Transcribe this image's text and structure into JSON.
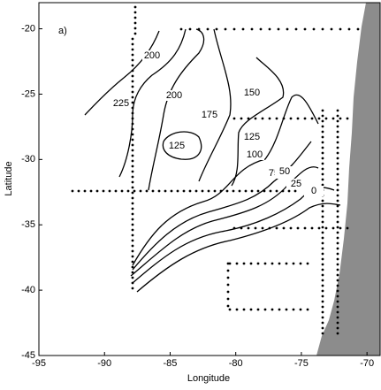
{
  "chart_data": {
    "type": "contour",
    "panel_label": "a)",
    "xlabel": "Longitude",
    "ylabel": "Latitude",
    "xlim": [
      -95,
      -69
    ],
    "ylim": [
      -45,
      -18
    ],
    "xticks": [
      -95,
      -90,
      -85,
      -80,
      -75,
      -70
    ],
    "yticks": [
      -45,
      -40,
      -35,
      -30,
      -25,
      -20
    ],
    "contour_levels": [
      225,
      200,
      175,
      150,
      125,
      100,
      75,
      50,
      25,
      0
    ],
    "contour_labels": [
      225,
      200,
      200,
      175,
      150,
      125,
      125,
      100,
      75,
      50,
      25,
      0
    ],
    "line_color": "#000000",
    "land_color": "#8c8c8c"
  }
}
